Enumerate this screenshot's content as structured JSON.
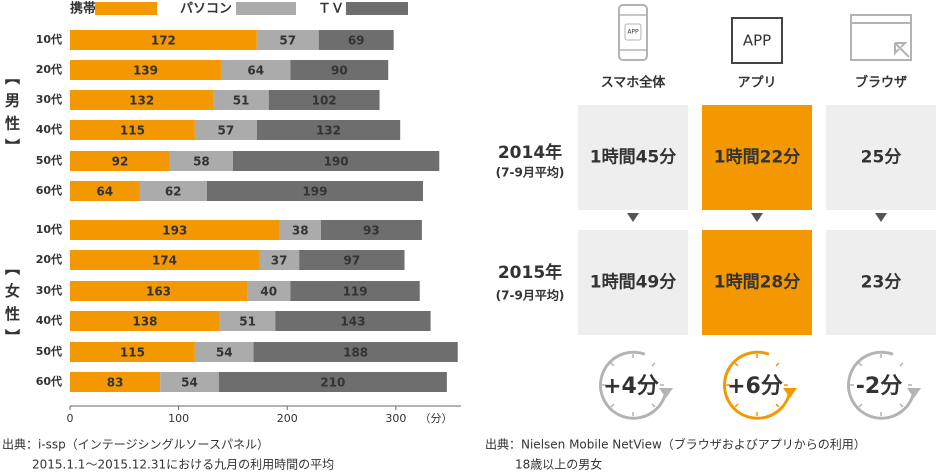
{
  "chart_data": {
    "type": "bar",
    "orientation": "horizontal",
    "stacked": true,
    "categories": [
      "10代",
      "20代",
      "30代",
      "40代",
      "50代",
      "60代",
      "10代",
      "20代",
      "30代",
      "40代",
      "50代",
      "60代"
    ],
    "groups": [
      {
        "label": "【男性】",
        "size": 6
      },
      {
        "label": "【女性】",
        "size": 6
      }
    ],
    "series": [
      {
        "name": "携帯",
        "color": "#f39800",
        "values": [
          172,
          139,
          132,
          115,
          92,
          64,
          193,
          174,
          163,
          138,
          115,
          83
        ]
      },
      {
        "name": "パソコン",
        "color": "#ababab",
        "values": [
          57,
          64,
          51,
          57,
          58,
          62,
          38,
          37,
          40,
          51,
          54,
          54
        ]
      },
      {
        "name": "ＴＶ",
        "color": "#6e6e6e",
        "values": [
          69,
          90,
          102,
          132,
          190,
          199,
          93,
          97,
          119,
          143,
          188,
          210
        ]
      }
    ],
    "xlim": [
      0,
      360
    ],
    "xticks": [
      0,
      100,
      200,
      300
    ],
    "x_unit": "（分）",
    "source": [
      "出典：i-ssp（インテージシングルソースパネル）",
      "2015.1.1～2015.12.31における九月の利用時間の平均"
    ]
  },
  "comparison": {
    "columns": [
      {
        "label": "スマホ全体",
        "icon_text": "APP"
      },
      {
        "label": "アプリ",
        "icon_text": "APP"
      },
      {
        "label": "ブラウザ"
      }
    ],
    "rows": [
      {
        "year": "2014年",
        "period": "(7-9月平均)",
        "cells": [
          "1時間45分",
          "1時間22分",
          "25分"
        ]
      },
      {
        "year": "2015年",
        "period": "(7-9月平均)",
        "cells": [
          "1時間49分",
          "1時間28分",
          "23分"
        ]
      }
    ],
    "changes": [
      "+4分",
      "+6分",
      "-2分"
    ],
    "source": [
      "出典：Nielsen Mobile NetView（ブラウザおよびアプリからの利用）",
      "18歳以上の男女"
    ]
  }
}
